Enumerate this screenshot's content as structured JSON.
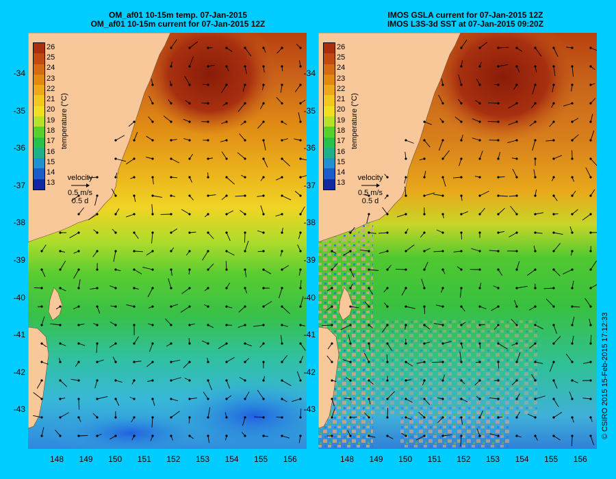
{
  "left_panel": {
    "title_line1": "OM_af01 10-15m temp. 07-Jan-2015",
    "title_line2": "OM_af01 10-15m current for 07-Jan-2015 12Z"
  },
  "right_panel": {
    "title_line1": "IMOS GSLA current for 07-Jan-2015 12Z",
    "title_line2": "IMOS L3S-3d SST at 07-Jan-2015 09:20Z"
  },
  "y_ticks": [
    "-34",
    "-35",
    "-36",
    "-37",
    "-38",
    "-39",
    "-40",
    "-41",
    "-42",
    "-43"
  ],
  "x_ticks": [
    "148",
    "149",
    "150",
    "151",
    "152",
    "153",
    "154",
    "155",
    "156"
  ],
  "colorbar": {
    "labels": [
      "26",
      "25",
      "24",
      "23",
      "22",
      "21",
      "20",
      "19",
      "18",
      "17",
      "16",
      "15",
      "14",
      "13"
    ],
    "title": "temperature (°C)",
    "colors": [
      "#a83010",
      "#c04a12",
      "#d36a14",
      "#e08a14",
      "#ecaa1a",
      "#f2c81c",
      "#f0e020",
      "#b8e028",
      "#58d02c",
      "#28c048",
      "#20b088",
      "#2090d0",
      "#1c5cc8",
      "#1028a0"
    ]
  },
  "velocity_legend": {
    "title": "velocity",
    "speed": "0.5 m/s",
    "duration": "0.5 d"
  },
  "credit": "© CSIRO 2015   15-Feb-2015 17:12:33",
  "colors": {
    "background": "#00ccff",
    "land": "#f9c89a",
    "nodata": "#c8a888"
  }
}
